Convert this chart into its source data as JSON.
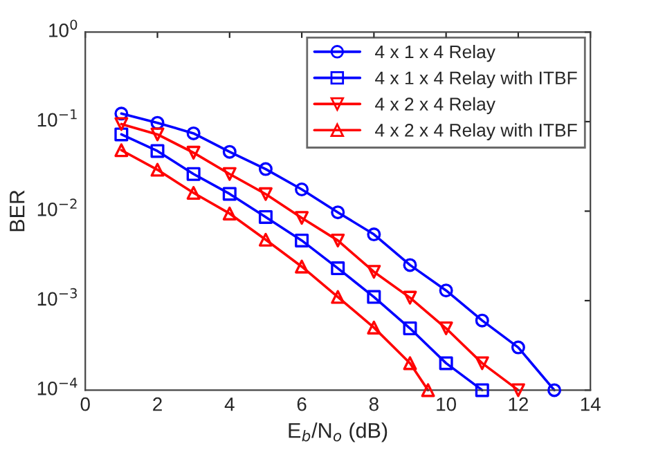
{
  "chart_data": {
    "type": "line",
    "xlabel": "E$_{b}$/N$_{o}$ (dB)",
    "ylabel": "BER",
    "log": "y",
    "xlim": [
      0,
      14
    ],
    "xticks": [
      0,
      2,
      4,
      6,
      8,
      10,
      12,
      14
    ],
    "ylim": [
      0.0001,
      1
    ],
    "yticks": [
      {
        "value": 0.0001,
        "label": "10$^{−4}$"
      },
      {
        "value": 0.001,
        "label": "10$^{−3}$"
      },
      {
        "value": 0.01,
        "label": "10$^{−2}$"
      },
      {
        "value": 0.1,
        "label": "10$^{−1}$"
      },
      {
        "value": 1,
        "label": "10$^{0}$"
      }
    ],
    "grid": false,
    "legend": "top right",
    "line_style": "solid",
    "series": [
      {
        "name": "4 x 1 x 4 Relay",
        "color": "#0000ff",
        "marker": "circle",
        "x": [
          1,
          2,
          3,
          4,
          5,
          6,
          7,
          8,
          9,
          10,
          11,
          12,
          13
        ],
        "values": [
          0.123,
          0.097,
          0.074,
          0.046,
          0.0295,
          0.0175,
          0.0097,
          0.0055,
          0.0025,
          0.0013,
          0.0006,
          0.0003,
          0.0001
        ]
      },
      {
        "name": "4 x 1 x 4 Relay with ITBF",
        "color": "#0000ff",
        "marker": "square",
        "x": [
          1,
          2,
          3,
          4,
          5,
          6,
          7,
          8,
          9,
          10,
          11
        ],
        "values": [
          0.072,
          0.047,
          0.026,
          0.0156,
          0.0086,
          0.0047,
          0.0023,
          0.0011,
          0.00049,
          0.0002,
          0.0001
        ]
      },
      {
        "name": "4 x 2 x 4 Relay",
        "color": "#ff0000",
        "marker": "triangle_down",
        "x": [
          1,
          2,
          3,
          4,
          5,
          6,
          7,
          8,
          9,
          10,
          11,
          12
        ],
        "values": [
          0.094,
          0.072,
          0.045,
          0.026,
          0.0155,
          0.0084,
          0.0047,
          0.0021,
          0.00108,
          0.00049,
          0.0002,
          0.0001
        ]
      },
      {
        "name": "4 x 2 x 4 Relay with ITBF",
        "color": "#ff0000",
        "marker": "triangle",
        "x": [
          1,
          2,
          3,
          4,
          5,
          6,
          7,
          8,
          9,
          9.5
        ],
        "values": [
          0.048,
          0.029,
          0.016,
          0.0094,
          0.0048,
          0.0024,
          0.0011,
          0.0005,
          0.0002,
          0.0001
        ]
      }
    ]
  }
}
